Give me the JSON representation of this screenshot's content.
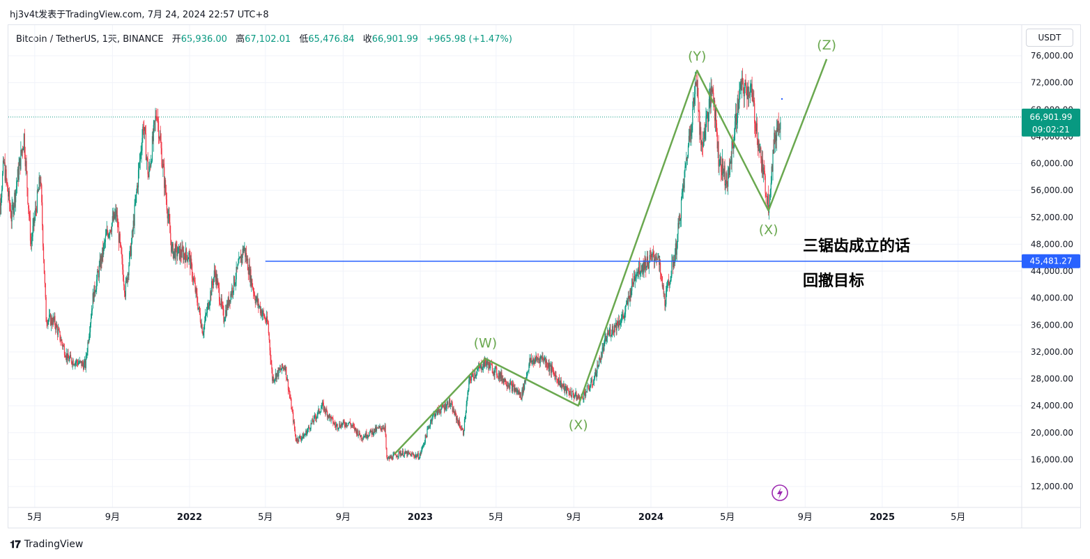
{
  "header": {
    "title": "hj3v4t发表于TradingView.com, 7月 24, 2024 22:57 UTC+8"
  },
  "legend": {
    "symbol": "Bitcoin / TetherUS, 1天, BINANCE",
    "open_label": "开",
    "open": "65,936.00",
    "high_label": "高",
    "high": "67,102.01",
    "low_label": "低",
    "low": "65,476.84",
    "close_label": "收",
    "close": "66,901.99",
    "change": "+965.98 (+1.47%)"
  },
  "currency_button": "USDT",
  "footer": {
    "brand": "TradingView"
  },
  "annotations": {
    "line1": "三锯齿成立的话",
    "line2": "回撤目标"
  },
  "chart_data": {
    "type": "candlestick",
    "symbol": "BTCUSDT",
    "interval": "1D",
    "ylim": [
      10000,
      78000
    ],
    "y_ticks": [
      12000,
      16000,
      20000,
      24000,
      28000,
      32000,
      36000,
      40000,
      44000,
      48000,
      52000,
      56000,
      60000,
      64000,
      68000,
      72000,
      76000
    ],
    "y_tick_labels": [
      "12,000.00",
      "16,000.00",
      "20,000.00",
      "24,000.00",
      "28,000.00",
      "32,000.00",
      "36,000.00",
      "40,000.00",
      "44,000.00",
      "48,000.00",
      "52,000.00",
      "56,000.00",
      "60,000.00",
      "64,000.00",
      "68,000.00",
      "72,000.00",
      "76,000.00"
    ],
    "x_range": [
      "2021-03-01",
      "2025-07-31"
    ],
    "x_ticks": [
      {
        "date": "2021-05-01",
        "label": "5月",
        "bold": false
      },
      {
        "date": "2021-09-01",
        "label": "9月",
        "bold": false
      },
      {
        "date": "2022-01-01",
        "label": "2022",
        "bold": true
      },
      {
        "date": "2022-05-01",
        "label": "5月",
        "bold": false
      },
      {
        "date": "2022-09-01",
        "label": "9月",
        "bold": false
      },
      {
        "date": "2023-01-01",
        "label": "2023",
        "bold": true
      },
      {
        "date": "2023-05-01",
        "label": "5月",
        "bold": false
      },
      {
        "date": "2023-09-01",
        "label": "9月",
        "bold": false
      },
      {
        "date": "2024-01-01",
        "label": "2024",
        "bold": true
      },
      {
        "date": "2024-05-01",
        "label": "5月",
        "bold": false
      },
      {
        "date": "2024-09-01",
        "label": "9月",
        "bold": false
      },
      {
        "date": "2025-01-01",
        "label": "2025",
        "bold": true
      },
      {
        "date": "2025-05-01",
        "label": "5月",
        "bold": false
      }
    ],
    "price_path": [
      [
        "2021-03-01",
        48000
      ],
      [
        "2021-03-13",
        60000
      ],
      [
        "2021-03-25",
        52000
      ],
      [
        "2021-04-14",
        64000
      ],
      [
        "2021-04-25",
        48000
      ],
      [
        "2021-05-10",
        58000
      ],
      [
        "2021-05-19",
        37000
      ],
      [
        "2021-06-01",
        36500
      ],
      [
        "2021-06-22",
        31000
      ],
      [
        "2021-07-20",
        30000
      ],
      [
        "2021-08-01",
        40000
      ],
      [
        "2021-08-23",
        49500
      ],
      [
        "2021-09-07",
        52500
      ],
      [
        "2021-09-21",
        41000
      ],
      [
        "2021-10-01",
        48000
      ],
      [
        "2021-10-20",
        66000
      ],
      [
        "2021-10-28",
        58000
      ],
      [
        "2021-11-10",
        68000
      ],
      [
        "2021-11-26",
        54000
      ],
      [
        "2021-12-04",
        47000
      ],
      [
        "2021-12-31",
        46300
      ],
      [
        "2022-01-22",
        35000
      ],
      [
        "2022-02-10",
        44000
      ],
      [
        "2022-02-24",
        37000
      ],
      [
        "2022-03-28",
        47500
      ],
      [
        "2022-04-15",
        40000
      ],
      [
        "2022-05-05",
        36000
      ],
      [
        "2022-05-12",
        28000
      ],
      [
        "2022-06-01",
        30000
      ],
      [
        "2022-06-14",
        22000
      ],
      [
        "2022-06-18",
        19000
      ],
      [
        "2022-07-01",
        19500
      ],
      [
        "2022-07-30",
        24000
      ],
      [
        "2022-08-20",
        21000
      ],
      [
        "2022-09-10",
        21500
      ],
      [
        "2022-09-30",
        19400
      ],
      [
        "2022-11-06",
        21000
      ],
      [
        "2022-11-09",
        16000
      ],
      [
        "2022-12-01",
        17000
      ],
      [
        "2022-12-31",
        16500
      ],
      [
        "2023-01-20",
        22500
      ],
      [
        "2023-02-16",
        24500
      ],
      [
        "2023-03-10",
        20000
      ],
      [
        "2023-03-20",
        28000
      ],
      [
        "2023-04-14",
        30500
      ],
      [
        "2023-05-01",
        29000
      ],
      [
        "2023-06-10",
        25500
      ],
      [
        "2023-06-23",
        30500
      ],
      [
        "2023-07-14",
        31200
      ],
      [
        "2023-08-17",
        26500
      ],
      [
        "2023-09-11",
        25000
      ],
      [
        "2023-10-01",
        27500
      ],
      [
        "2023-10-24",
        34500
      ],
      [
        "2023-11-20",
        37500
      ],
      [
        "2023-12-08",
        44000
      ],
      [
        "2024-01-11",
        46500
      ],
      [
        "2024-01-23",
        39500
      ],
      [
        "2024-02-10",
        47500
      ],
      [
        "2024-02-28",
        62000
      ],
      [
        "2024-03-14",
        73000
      ],
      [
        "2024-03-20",
        62000
      ],
      [
        "2024-04-08",
        71500
      ],
      [
        "2024-04-17",
        61000
      ],
      [
        "2024-05-01",
        57000
      ],
      [
        "2024-05-21",
        71000
      ],
      [
        "2024-06-07",
        71000
      ],
      [
        "2024-06-24",
        60000
      ],
      [
        "2024-07-05",
        54000
      ],
      [
        "2024-07-15",
        64000
      ],
      [
        "2024-07-24",
        66901.99
      ]
    ],
    "wave_path": [
      {
        "date": "2022-11-21",
        "value": 16800,
        "label": null
      },
      {
        "date": "2023-04-14",
        "value": 31000,
        "label": "(W)"
      },
      {
        "date": "2023-09-08",
        "value": 24000,
        "label": "(X)"
      },
      {
        "date": "2024-03-14",
        "value": 73800,
        "label": "(Y)"
      },
      {
        "date": "2024-07-05",
        "value": 53000,
        "label": "(X)"
      },
      {
        "date": "2024-10-05",
        "value": 75500,
        "label": "(Z)"
      }
    ],
    "horizontal_lines": [
      {
        "from_date": "2022-05-01",
        "value": 45481.27,
        "label": "45,481.27",
        "color": "#2962ff"
      }
    ],
    "last_price": {
      "value": 66901.99,
      "label": "66,901.99",
      "countdown": "09:02:21",
      "color": "#089981"
    },
    "colors": {
      "up": "#089981",
      "down": "#f23645",
      "wave": "#6aa84f",
      "grid": "#f0f3fa",
      "axis_text": "#131722"
    },
    "grid": true,
    "price_axis_position": "right"
  }
}
